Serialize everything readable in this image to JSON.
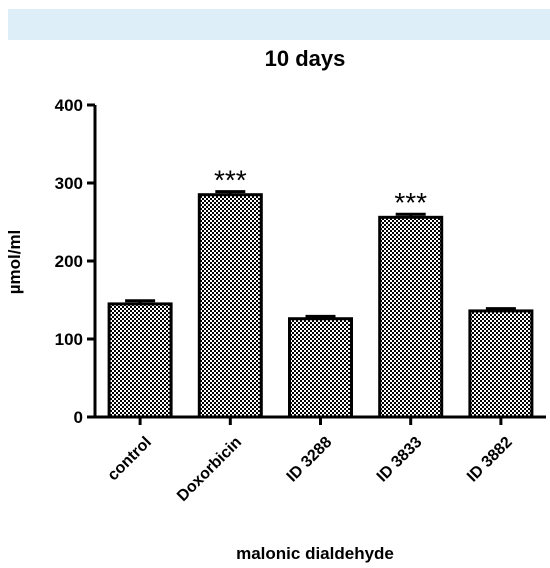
{
  "chart_data": {
    "type": "bar",
    "title": "10 days",
    "xlabel": "malonic dialdehyde",
    "ylabel": "µmol/ml",
    "ylim": [
      0,
      400
    ],
    "yticks": [
      "0",
      "100",
      "200",
      "300",
      "400"
    ],
    "categories": [
      "control",
      "Doxorbicin",
      "ID 3288",
      "ID 3833",
      "ID 3882"
    ],
    "values": [
      145,
      285,
      126,
      256,
      136
    ],
    "errors": [
      4,
      4,
      3,
      4,
      3
    ],
    "annotations": [
      "",
      "***",
      "",
      "***",
      ""
    ],
    "grid": false,
    "bar_fill": "checkerboard",
    "colors": {
      "band": "#ddeef8",
      "bar_edge": "#000000",
      "checker_dark": "#000000",
      "checker_light": "#ffffff"
    }
  }
}
